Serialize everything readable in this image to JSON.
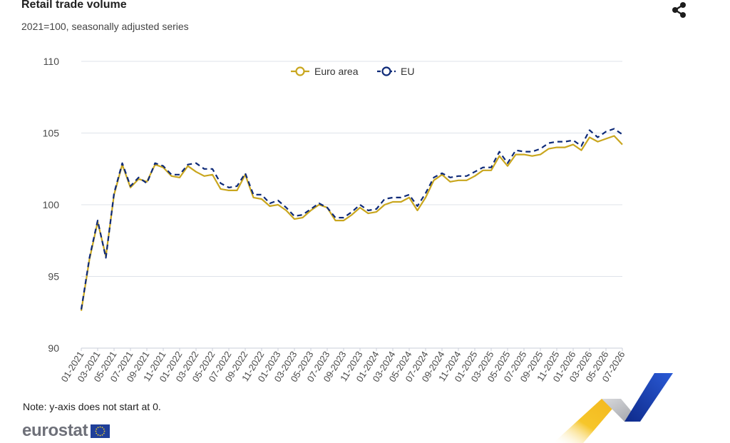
{
  "header": {
    "title": "Retail trade volume",
    "subtitle": "2021=100, seasonally adjusted series"
  },
  "footer": {
    "note": "Note: y-axis does not start at 0.",
    "brand": "eurostat"
  },
  "icons": {
    "share": "share-icon",
    "flag": "eu-flag-icon"
  },
  "colors": {
    "euro_area": "#c9a61e",
    "eu": "#0e2a78",
    "grid": "#dfe3ea",
    "axis_text": "#4a4a4a"
  },
  "chart_data": {
    "type": "line",
    "title": "Retail trade volume",
    "subtitle": "2021=100, seasonally adjusted series",
    "xlabel": "",
    "ylabel": "",
    "ylim": [
      90,
      110
    ],
    "yticks": [
      90,
      95,
      100,
      105,
      110
    ],
    "grid": true,
    "legend": "top-center",
    "x": [
      "01-2021",
      "02-2021",
      "03-2021",
      "04-2021",
      "05-2021",
      "06-2021",
      "07-2021",
      "08-2021",
      "09-2021",
      "10-2021",
      "11-2021",
      "12-2021",
      "01-2022",
      "02-2022",
      "03-2022",
      "04-2022",
      "05-2022",
      "06-2022",
      "07-2022",
      "08-2022",
      "09-2022",
      "10-2022",
      "11-2022",
      "12-2022",
      "01-2023",
      "02-2023",
      "03-2023",
      "04-2023",
      "05-2023",
      "06-2023",
      "07-2023",
      "08-2023",
      "09-2023",
      "10-2023",
      "11-2023",
      "12-2023",
      "01-2024",
      "02-2024",
      "03-2024",
      "04-2024",
      "05-2024",
      "06-2024",
      "07-2024",
      "08-2024",
      "09-2024",
      "10-2024",
      "11-2024",
      "12-2024",
      "01-2025",
      "02-2025",
      "03-2025",
      "04-2025",
      "05-2025",
      "06-2025",
      "07-2025",
      "08-2025",
      "09-2025",
      "10-2025",
      "11-2025",
      "12-2025",
      "01-2026",
      "02-2026",
      "03-2026",
      "04-2026",
      "05-2026",
      "06-2026",
      "07-2026"
    ],
    "xtick_labels": [
      "01-2021",
      "03-2021",
      "05-2021",
      "07-2021",
      "09-2021",
      "11-2021",
      "01-2022",
      "03-2022",
      "05-2022",
      "07-2022",
      "09-2022",
      "11-2022",
      "01-2023",
      "03-2023",
      "05-2023",
      "07-2023",
      "09-2023",
      "11-2023",
      "01-2024",
      "03-2024",
      "05-2024",
      "07-2024",
      "09-2024",
      "11-2024",
      "01-2025",
      "03-2025",
      "05-2025",
      "07-2025",
      "09-2025",
      "11-2025",
      "01-2026",
      "03-2026",
      "05-2026",
      "07-2026"
    ],
    "series": [
      {
        "name": "Euro area",
        "color": "#c9a61e",
        "style": "solid",
        "values": [
          92.6,
          96.2,
          98.8,
          96.4,
          100.7,
          102.8,
          101.2,
          101.8,
          101.6,
          102.8,
          102.6,
          102.0,
          101.9,
          102.7,
          102.3,
          102.0,
          102.1,
          101.1,
          101.0,
          101.0,
          102.1,
          100.5,
          100.4,
          99.9,
          100.0,
          99.6,
          99.0,
          99.1,
          99.6,
          100.0,
          99.8,
          98.9,
          98.9,
          99.3,
          99.8,
          99.4,
          99.5,
          100.0,
          100.2,
          100.2,
          100.5,
          99.6,
          100.5,
          101.7,
          102.1,
          101.6,
          101.7,
          101.7,
          102.0,
          102.4,
          102.4,
          103.4,
          102.7,
          103.5,
          103.5,
          103.4,
          103.5,
          103.9,
          104.0,
          104.0,
          104.2,
          103.8,
          104.7,
          104.4,
          104.6,
          104.8,
          104.2
        ]
      },
      {
        "name": "EU",
        "color": "#0e2a78",
        "style": "dashed",
        "values": [
          92.7,
          96.3,
          98.9,
          96.3,
          100.8,
          102.9,
          101.3,
          101.9,
          101.5,
          102.9,
          102.7,
          102.1,
          102.1,
          102.8,
          102.9,
          102.5,
          102.5,
          101.5,
          101.2,
          101.3,
          102.2,
          100.7,
          100.7,
          100.1,
          100.3,
          99.8,
          99.2,
          99.3,
          99.7,
          100.1,
          99.8,
          99.1,
          99.1,
          99.5,
          100.0,
          99.6,
          99.7,
          100.4,
          100.5,
          100.5,
          100.7,
          99.9,
          100.8,
          101.9,
          102.2,
          101.9,
          102.0,
          102.0,
          102.3,
          102.6,
          102.6,
          103.7,
          102.9,
          103.8,
          103.7,
          103.7,
          103.9,
          104.3,
          104.4,
          104.4,
          104.5,
          104.1,
          105.2,
          104.7,
          105.1,
          105.3,
          104.9
        ]
      }
    ]
  }
}
